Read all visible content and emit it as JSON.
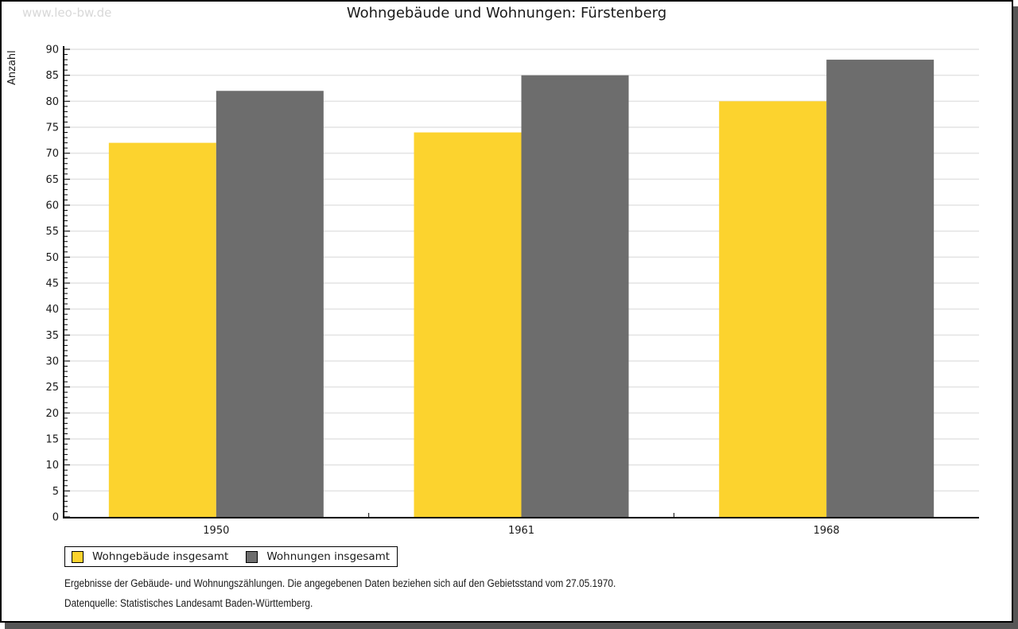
{
  "page": {
    "watermark": "www.leo-bw.de"
  },
  "chart_data": {
    "type": "bar",
    "title": "Wohngebäude und Wohnungen: Fürstenberg",
    "ylabel": "Anzahl",
    "xlabel": "",
    "categories": [
      "1950",
      "1961",
      "1968"
    ],
    "series": [
      {
        "name": "Wohngebäude insgesamt",
        "color": "#FCD32E",
        "values": [
          72,
          74,
          80
        ]
      },
      {
        "name": "Wohnungen insgesamt",
        "color": "#6D6D6D",
        "values": [
          82,
          85,
          88
        ]
      }
    ],
    "ylim": [
      0,
      90
    ],
    "ytick_step": 5,
    "minor_tick_step": 1,
    "grid": "horizontal",
    "legend_position": "bottom-left"
  },
  "footer": {
    "line1": "Ergebnisse der Gebäude- und Wohnungszählungen. Die angegebenen Daten beziehen sich auf den Gebietsstand vom 27.05.1970.",
    "line2": "Datenquelle: Statistisches Landesamt Baden-Württemberg."
  },
  "colors": {
    "bar_yellow": "#FCD32E",
    "bar_gray": "#6D6D6D",
    "gridline": "#E3E3E3",
    "axis": "#000000",
    "text": "#1A1A1A",
    "shadow": "#565656",
    "watermark": "#D8D8D8"
  }
}
